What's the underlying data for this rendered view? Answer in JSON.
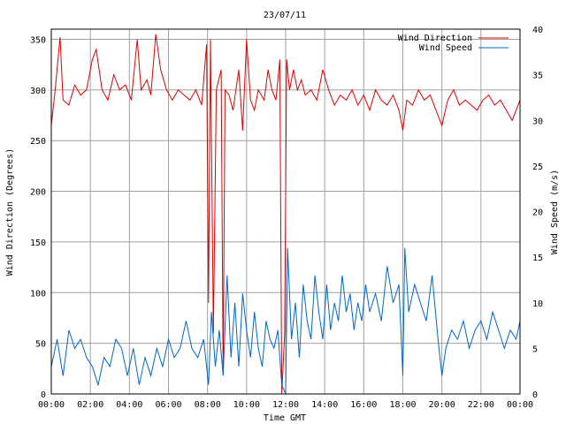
{
  "chart_data": {
    "type": "line",
    "title": "23/07/11",
    "xlabel": "Time GMT",
    "ylabel_left": "Wind Direction (Degrees)",
    "ylabel_right": "Wind Speed (m/s)",
    "x_ticks": [
      "00:00",
      "02:00",
      "04:00",
      "06:00",
      "08:00",
      "10:00",
      "12:00",
      "14:00",
      "16:00",
      "18:00",
      "20:00",
      "22:00",
      "00:00"
    ],
    "xlim_hours": [
      0,
      24
    ],
    "ylim_left": [
      0,
      360
    ],
    "ylim_right": [
      0,
      40
    ],
    "y_ticks_left": [
      "0",
      "50",
      "100",
      "150",
      "200",
      "250",
      "300",
      "350"
    ],
    "y_ticks_right": [
      "0",
      "5",
      "10",
      "15",
      "20",
      "25",
      "30",
      "35",
      "40"
    ],
    "grid": true,
    "legend_position": "top-right",
    "series": [
      {
        "name": "Wind Direction",
        "axis": "left",
        "color": "#dd0000",
        "points": [
          [
            0,
            265
          ],
          [
            0.2,
            300
          ],
          [
            0.45,
            352
          ],
          [
            0.6,
            290
          ],
          [
            0.9,
            285
          ],
          [
            1.2,
            305
          ],
          [
            1.5,
            295
          ],
          [
            1.8,
            300
          ],
          [
            2.1,
            330
          ],
          [
            2.3,
            340
          ],
          [
            2.6,
            300
          ],
          [
            2.9,
            290
          ],
          [
            3.2,
            315
          ],
          [
            3.5,
            300
          ],
          [
            3.8,
            305
          ],
          [
            4.1,
            290
          ],
          [
            4.4,
            350
          ],
          [
            4.6,
            300
          ],
          [
            4.9,
            310
          ],
          [
            5.1,
            295
          ],
          [
            5.35,
            355
          ],
          [
            5.6,
            320
          ],
          [
            5.9,
            300
          ],
          [
            6.2,
            290
          ],
          [
            6.5,
            300
          ],
          [
            6.8,
            295
          ],
          [
            7.1,
            290
          ],
          [
            7.4,
            300
          ],
          [
            7.7,
            285
          ],
          [
            7.95,
            345
          ],
          [
            8.05,
            90
          ],
          [
            8.15,
            350
          ],
          [
            8.3,
            60
          ],
          [
            8.45,
            300
          ],
          [
            8.7,
            320
          ],
          [
            8.8,
            20
          ],
          [
            8.9,
            300
          ],
          [
            9.1,
            295
          ],
          [
            9.3,
            280
          ],
          [
            9.6,
            320
          ],
          [
            9.8,
            260
          ],
          [
            10,
            350
          ],
          [
            10.2,
            290
          ],
          [
            10.4,
            280
          ],
          [
            10.6,
            300
          ],
          [
            10.9,
            290
          ],
          [
            11.1,
            320
          ],
          [
            11.3,
            300
          ],
          [
            11.5,
            290
          ],
          [
            11.7,
            330
          ],
          [
            11.8,
            0
          ],
          [
            11.95,
            60
          ],
          [
            12.05,
            330
          ],
          [
            12.2,
            300
          ],
          [
            12.4,
            320
          ],
          [
            12.6,
            300
          ],
          [
            12.8,
            310
          ],
          [
            13,
            295
          ],
          [
            13.3,
            300
          ],
          [
            13.6,
            290
          ],
          [
            13.9,
            320
          ],
          [
            14.2,
            300
          ],
          [
            14.5,
            285
          ],
          [
            14.8,
            295
          ],
          [
            15.1,
            290
          ],
          [
            15.4,
            300
          ],
          [
            15.7,
            285
          ],
          [
            16,
            295
          ],
          [
            16.3,
            280
          ],
          [
            16.6,
            300
          ],
          [
            16.9,
            290
          ],
          [
            17.2,
            285
          ],
          [
            17.5,
            295
          ],
          [
            17.8,
            280
          ],
          [
            18,
            260
          ],
          [
            18.2,
            290
          ],
          [
            18.5,
            285
          ],
          [
            18.8,
            300
          ],
          [
            19.1,
            290
          ],
          [
            19.4,
            295
          ],
          [
            19.7,
            280
          ],
          [
            20,
            265
          ],
          [
            20.3,
            290
          ],
          [
            20.6,
            300
          ],
          [
            20.9,
            285
          ],
          [
            21.2,
            290
          ],
          [
            21.5,
            285
          ],
          [
            21.8,
            280
          ],
          [
            22.1,
            290
          ],
          [
            22.4,
            295
          ],
          [
            22.7,
            285
          ],
          [
            23,
            290
          ],
          [
            23.3,
            280
          ],
          [
            23.6,
            270
          ],
          [
            24,
            290
          ]
        ]
      },
      {
        "name": "Wind Speed",
        "axis": "right",
        "color": "#0066cc",
        "points": [
          [
            0,
            3
          ],
          [
            0.3,
            6
          ],
          [
            0.6,
            2
          ],
          [
            0.9,
            7
          ],
          [
            1.2,
            5
          ],
          [
            1.5,
            6
          ],
          [
            1.8,
            4
          ],
          [
            2.1,
            3
          ],
          [
            2.4,
            1
          ],
          [
            2.7,
            4
          ],
          [
            3,
            3
          ],
          [
            3.3,
            6
          ],
          [
            3.6,
            5
          ],
          [
            3.9,
            2
          ],
          [
            4.2,
            5
          ],
          [
            4.5,
            1
          ],
          [
            4.8,
            4
          ],
          [
            5.1,
            2
          ],
          [
            5.4,
            5
          ],
          [
            5.7,
            3
          ],
          [
            6,
            6
          ],
          [
            6.3,
            4
          ],
          [
            6.6,
            5
          ],
          [
            6.9,
            8
          ],
          [
            7.2,
            5
          ],
          [
            7.5,
            4
          ],
          [
            7.8,
            6
          ],
          [
            8.05,
            1
          ],
          [
            8.2,
            9
          ],
          [
            8.4,
            3
          ],
          [
            8.6,
            7
          ],
          [
            8.8,
            2
          ],
          [
            9,
            13
          ],
          [
            9.2,
            4
          ],
          [
            9.4,
            10
          ],
          [
            9.6,
            3
          ],
          [
            9.8,
            11
          ],
          [
            10,
            7
          ],
          [
            10.2,
            4
          ],
          [
            10.4,
            9
          ],
          [
            10.6,
            5
          ],
          [
            10.8,
            3
          ],
          [
            11,
            8
          ],
          [
            11.2,
            6
          ],
          [
            11.4,
            5
          ],
          [
            11.6,
            7
          ],
          [
            11.8,
            1
          ],
          [
            12,
            0
          ],
          [
            12.1,
            16
          ],
          [
            12.3,
            6
          ],
          [
            12.5,
            10
          ],
          [
            12.7,
            4
          ],
          [
            12.9,
            12
          ],
          [
            13.1,
            8
          ],
          [
            13.3,
            6
          ],
          [
            13.5,
            13
          ],
          [
            13.7,
            9
          ],
          [
            13.9,
            6
          ],
          [
            14.1,
            12
          ],
          [
            14.3,
            7
          ],
          [
            14.5,
            10
          ],
          [
            14.7,
            8
          ],
          [
            14.9,
            13
          ],
          [
            15.1,
            9
          ],
          [
            15.3,
            11
          ],
          [
            15.5,
            7
          ],
          [
            15.7,
            10
          ],
          [
            15.9,
            8
          ],
          [
            16.1,
            12
          ],
          [
            16.3,
            9
          ],
          [
            16.6,
            11
          ],
          [
            16.9,
            8
          ],
          [
            17.2,
            14
          ],
          [
            17.5,
            10
          ],
          [
            17.8,
            12
          ],
          [
            18,
            2
          ],
          [
            18.1,
            16
          ],
          [
            18.3,
            9
          ],
          [
            18.6,
            12
          ],
          [
            18.9,
            10
          ],
          [
            19.2,
            8
          ],
          [
            19.5,
            13
          ],
          [
            19.8,
            6
          ],
          [
            20,
            2
          ],
          [
            20.2,
            5
          ],
          [
            20.5,
            7
          ],
          [
            20.8,
            6
          ],
          [
            21.1,
            8
          ],
          [
            21.4,
            5
          ],
          [
            21.7,
            7
          ],
          [
            22,
            8
          ],
          [
            22.3,
            6
          ],
          [
            22.6,
            9
          ],
          [
            22.9,
            7
          ],
          [
            23.2,
            5
          ],
          [
            23.5,
            7
          ],
          [
            23.8,
            6
          ],
          [
            24,
            8
          ]
        ]
      }
    ]
  }
}
